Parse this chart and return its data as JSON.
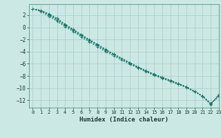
{
  "xlabel": "Humidex (Indice chaleur)",
  "ylabel": "",
  "bg_color": "#cce8e4",
  "grid_color": "#aad0cc",
  "line_color": "#1a7a6e",
  "xlim": [
    -0.5,
    23
  ],
  "ylim": [
    -13.2,
    3.8
  ],
  "xticks": [
    0,
    1,
    2,
    3,
    4,
    5,
    6,
    7,
    8,
    9,
    10,
    11,
    12,
    13,
    14,
    15,
    16,
    17,
    18,
    19,
    20,
    21,
    22,
    23
  ],
  "yticks": [
    -12,
    -10,
    -8,
    -6,
    -4,
    -2,
    0,
    2
  ],
  "series": [
    [
      3.0,
      2.8,
      2.2,
      1.5,
      0.5,
      -0.3,
      -1.2,
      -2.0,
      -2.8,
      -3.6,
      -4.4,
      -5.1,
      -5.8,
      -6.5,
      -7.1,
      -7.7,
      -8.2,
      -8.7,
      -9.2,
      -9.8,
      -10.5,
      -11.3,
      -12.5,
      -11.4
    ],
    [
      3.0,
      2.6,
      1.8,
      1.0,
      0.1,
      -0.7,
      -1.6,
      -2.4,
      -3.2,
      -4.0,
      -4.7,
      -5.4,
      -6.1,
      -6.7,
      -7.3,
      -7.9,
      -8.4,
      -8.9,
      -9.4,
      -9.9,
      -10.6,
      -11.3,
      -12.7,
      -11.0
    ],
    [
      3.0,
      2.8,
      2.0,
      1.2,
      0.3,
      -0.5,
      -1.4,
      -2.2,
      -3.0,
      -3.8,
      -4.5,
      -5.2,
      -5.9,
      -6.6,
      -7.2,
      -7.8,
      -8.3,
      -8.8,
      -9.3,
      -9.85,
      -10.55,
      -11.35,
      -12.6,
      -11.2
    ],
    [
      3.0,
      2.7,
      2.1,
      1.3,
      0.4,
      -0.4,
      -1.3,
      -2.1,
      -2.9,
      -3.7,
      -4.4,
      -5.15,
      -5.85,
      -6.55,
      -7.15,
      -7.75,
      -8.25,
      -8.75,
      -9.25,
      -9.82,
      -10.52,
      -11.32,
      -12.55,
      -11.3
    ]
  ]
}
